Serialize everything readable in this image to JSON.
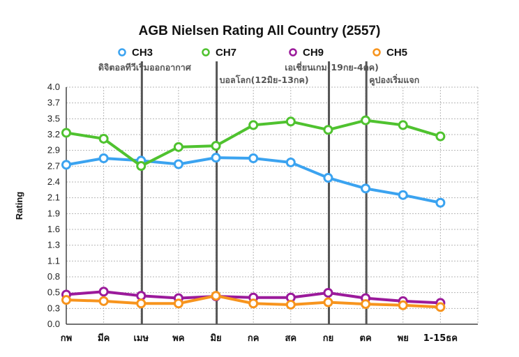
{
  "chart_data": {
    "type": "line",
    "title": "AGB Nielsen Rating All Country (2557)",
    "ylabel": "Rating",
    "xlabel": "",
    "categories": [
      "กพ",
      "มีค",
      "เมษ",
      "พค",
      "มิย",
      "กค",
      "สค",
      "กย",
      "ตค",
      "พย",
      "1-15ธค"
    ],
    "yticks": [
      "0.0",
      "0.3",
      "0.5",
      "0.8",
      "1.1",
      "1.3",
      "1.6",
      "1.9",
      "2.1",
      "2.4",
      "2.7",
      "2.9",
      "3.2",
      "3.5",
      "3.7",
      "4.0"
    ],
    "ylim": [
      0,
      4.0
    ],
    "grid": true,
    "legend_position": "top",
    "series": [
      {
        "name": "CH3",
        "color": "#3ba3f0",
        "values": [
          2.69,
          2.8,
          2.76,
          2.7,
          2.81,
          2.8,
          2.73,
          2.47,
          2.29,
          2.18,
          2.05
        ]
      },
      {
        "name": "CH7",
        "color": "#4fc22f",
        "values": [
          3.23,
          3.13,
          2.67,
          2.99,
          3.01,
          3.36,
          3.42,
          3.28,
          3.44,
          3.36,
          3.17
        ]
      },
      {
        "name": "CH9",
        "color": "#9b1a9b",
        "values": [
          0.5,
          0.55,
          0.48,
          0.44,
          0.47,
          0.45,
          0.45,
          0.53,
          0.44,
          0.39,
          0.36
        ]
      },
      {
        "name": "CH5",
        "color": "#f7941d",
        "values": [
          0.41,
          0.39,
          0.35,
          0.35,
          0.48,
          0.35,
          0.33,
          0.37,
          0.34,
          0.32,
          0.29
        ]
      }
    ],
    "annotations": [
      {
        "text": "ดิจิตอลทีวีเริ่มออกอากาศ",
        "x_category": "เมษ"
      },
      {
        "text": "บอลโลก(12มิย-13กค)",
        "x_category": "มิย"
      },
      {
        "text": "เอเชี่ยนเกม(19กย-4ตค)",
        "x_category": "กย"
      },
      {
        "text": "คูปองเริ่มแจก",
        "x_category": "ตค"
      }
    ]
  }
}
